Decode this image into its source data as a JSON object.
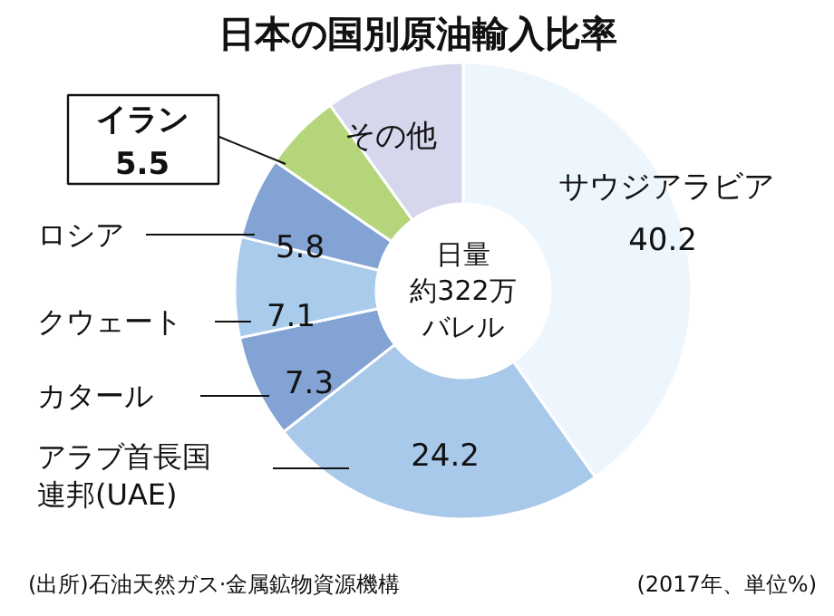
{
  "chart_data": {
    "type": "donut",
    "title": "日本の国別原油輸入比率",
    "categories": [
      "サウジアラビア",
      "アラブ首長国連邦(UAE)",
      "カタール",
      "クウェート",
      "ロシア",
      "イラン",
      "その他"
    ],
    "values": [
      40.2,
      24.2,
      7.3,
      7.1,
      5.8,
      5.5,
      9.9
    ],
    "colors": [
      "#eef6fd",
      "#a9c9ea",
      "#82a3d3",
      "#a9cbec",
      "#82a3d3",
      "#b5d57a",
      "#d6d6ec"
    ],
    "value_labels": [
      "40.2",
      "24.2",
      "7.3",
      "7.1",
      "5.8",
      "5.5",
      null
    ],
    "annotations": [
      "日量",
      "約322万",
      "バレル",
      "(出所)石油天然ガス·金属鉱物資源機構",
      "(2017年、単位%)"
    ]
  }
}
